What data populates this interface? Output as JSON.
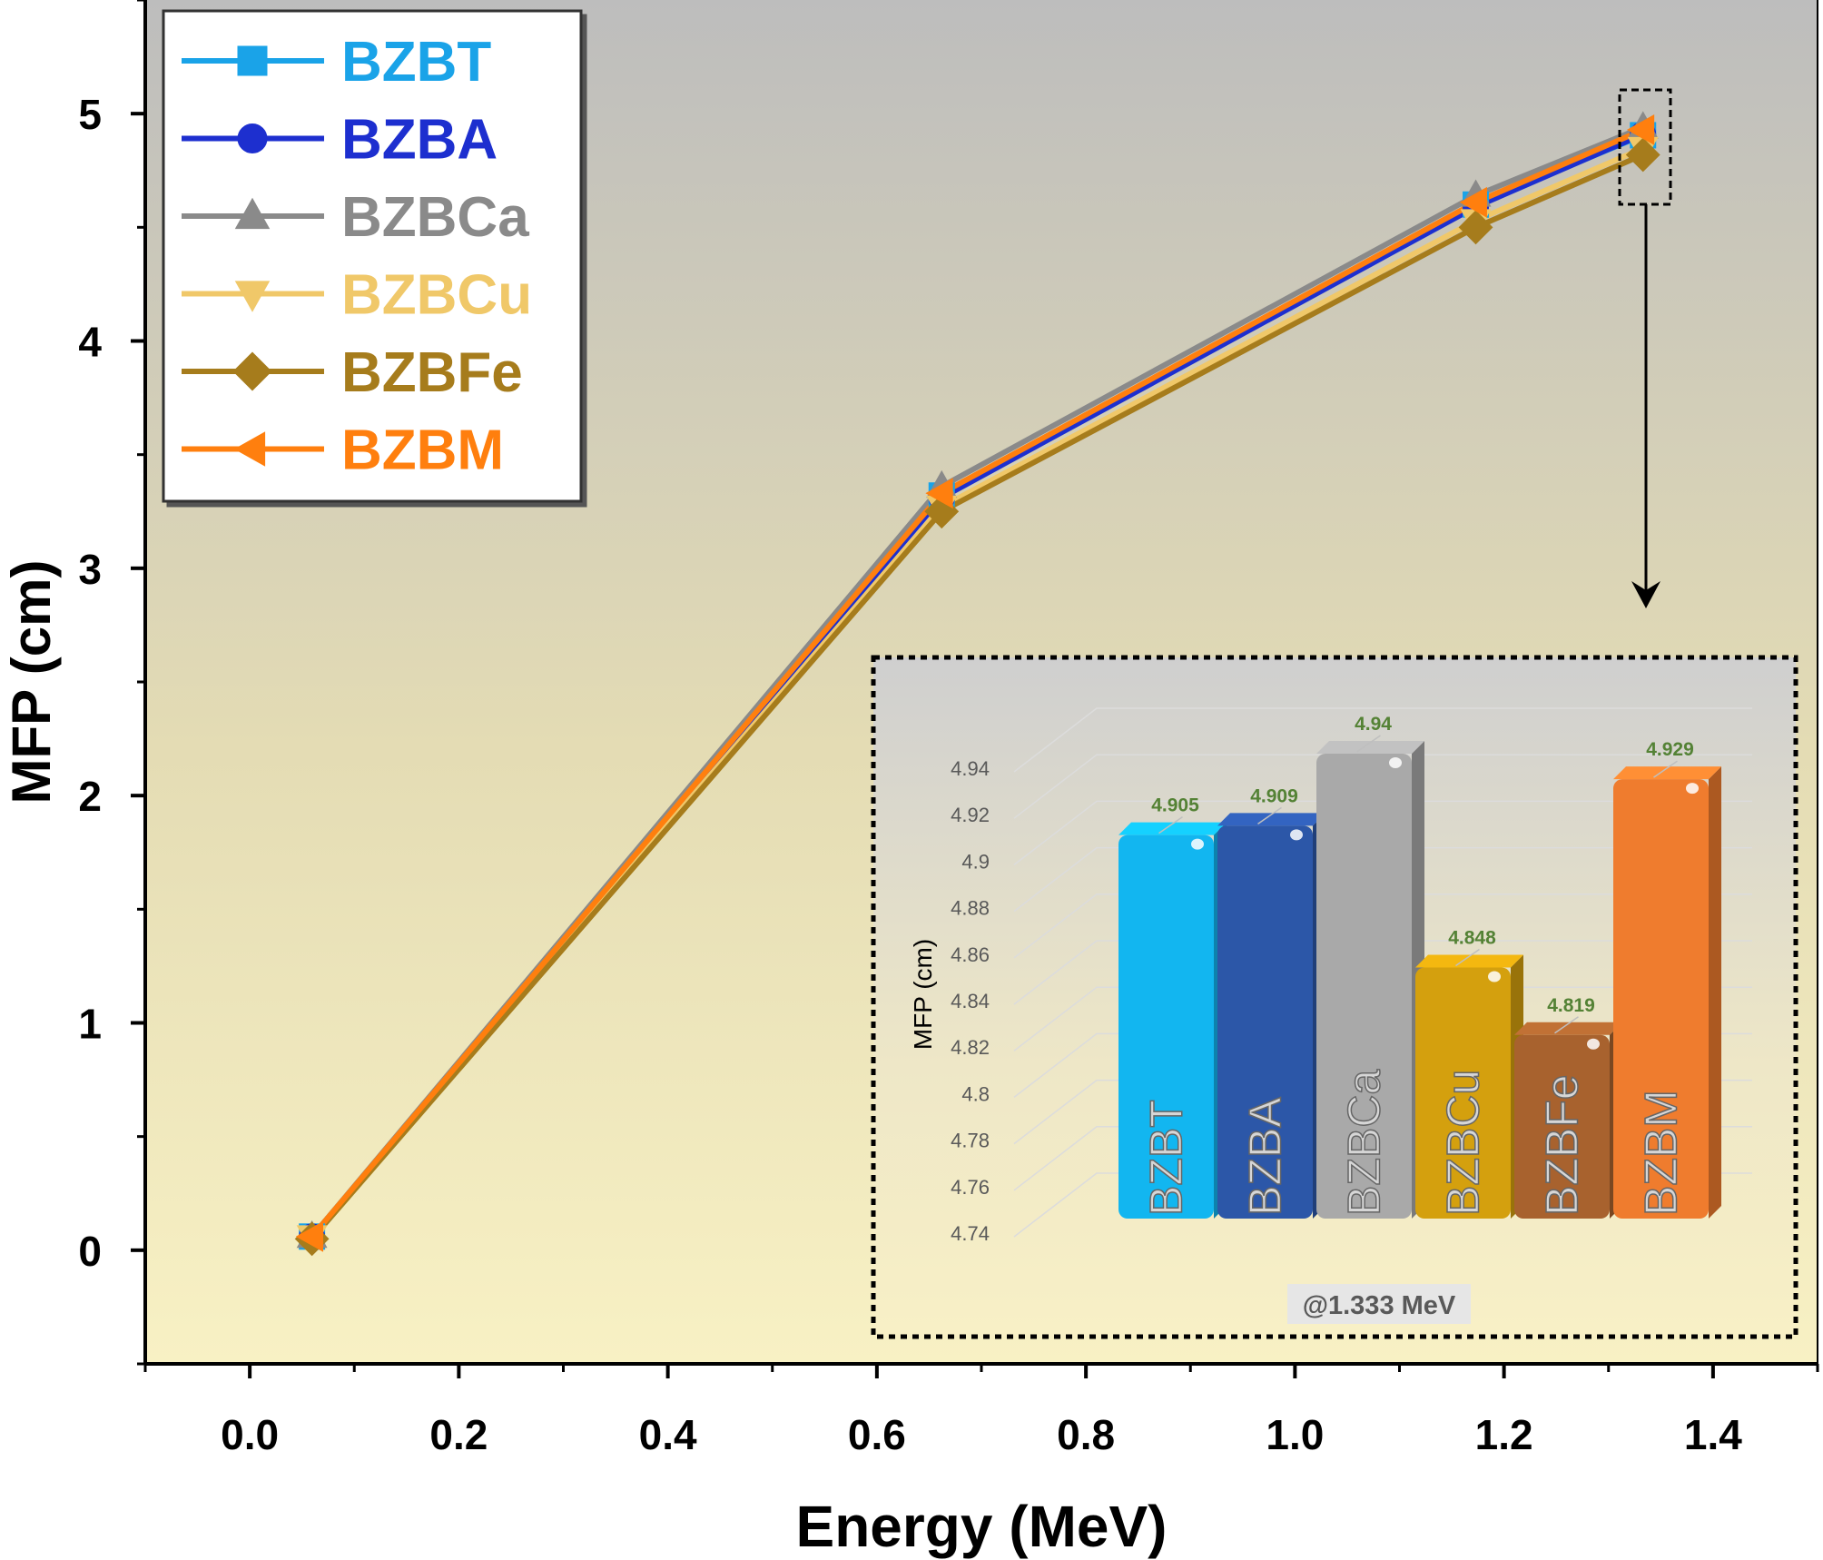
{
  "chart_data": [
    {
      "type": "line",
      "title": "",
      "xlabel": "Energy (MeV)",
      "ylabel": "MFP (cm)",
      "xlim": [
        -0.1,
        1.5
      ],
      "ylim": [
        -0.5,
        5.5
      ],
      "x_ticks": [
        "0.0",
        "0.2",
        "0.4",
        "0.6",
        "0.8",
        "1.0",
        "1.2",
        "1.4"
      ],
      "y_ticks": [
        "0",
        "1",
        "2",
        "3",
        "4",
        "5"
      ],
      "x": [
        0.0595,
        0.662,
        1.173,
        1.333
      ],
      "legend_position": "top-left",
      "series": [
        {
          "name": "BZBT",
          "color": "#1aa3e8",
          "marker": "square",
          "values": [
            0.06,
            3.32,
            4.6,
            4.905
          ]
        },
        {
          "name": "BZBA",
          "color": "#1d2fcf",
          "marker": "circle",
          "values": [
            0.06,
            3.31,
            4.59,
            4.909
          ]
        },
        {
          "name": "BZBCa",
          "color": "#8a8a8a",
          "marker": "triangle-up",
          "values": [
            0.06,
            3.36,
            4.64,
            4.94
          ]
        },
        {
          "name": "BZBCu",
          "color": "#f0c869",
          "marker": "triangle-down",
          "values": [
            0.06,
            3.27,
            4.53,
            4.848
          ]
        },
        {
          "name": "BZBFe",
          "color": "#a67c1c",
          "marker": "diamond",
          "values": [
            0.05,
            3.25,
            4.5,
            4.819
          ]
        },
        {
          "name": "BZBM",
          "color": "#ff7f0e",
          "marker": "triangle-left",
          "values": [
            0.06,
            3.33,
            4.61,
            4.929
          ]
        }
      ]
    },
    {
      "type": "bar",
      "title": "",
      "annotation": "@1.333 MeV",
      "ylabel": "MFP (cm)",
      "ylim": [
        4.74,
        4.94
      ],
      "y_ticks": [
        "4.74",
        "4.76",
        "4.78",
        "4.8",
        "4.82",
        "4.84",
        "4.86",
        "4.88",
        "4.9",
        "4.92",
        "4.94"
      ],
      "categories": [
        "BZBT",
        "BZBA",
        "BZBCa",
        "BZBCu",
        "BZBFe",
        "BZBM"
      ],
      "values": [
        4.905,
        4.909,
        4.94,
        4.848,
        4.819,
        4.929
      ],
      "value_labels": [
        "4.905",
        "4.909",
        "4.94",
        "4.848",
        "4.819",
        "4.929"
      ],
      "colors": [
        "#12b6f0",
        "#2c57a8",
        "#a9a9a9",
        "#d4a00e",
        "#a8622e",
        "#ef7c2e"
      ]
    }
  ]
}
